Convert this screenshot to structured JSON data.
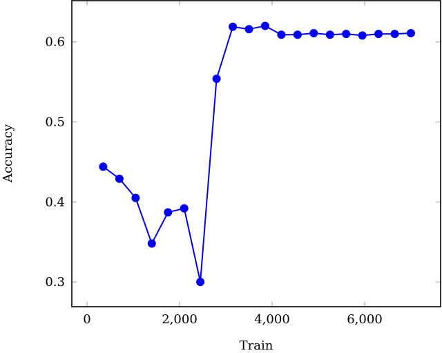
{
  "chart_data": {
    "type": "line",
    "title": "",
    "xlabel": "Train",
    "ylabel": "Accuracy",
    "xlim": [
      -300,
      7700
    ],
    "ylim": [
      0.272,
      0.652
    ],
    "xticks": [
      0,
      2000,
      4000,
      6000
    ],
    "xtick_labels": [
      "0",
      "2,000",
      "4,000",
      "6,000"
    ],
    "yticks": [
      0.3,
      0.4,
      0.5,
      0.6
    ],
    "ytick_labels": [
      "0.3",
      "0.4",
      "0.5",
      "0.6"
    ],
    "grid": false,
    "legend": null,
    "series": [
      {
        "name": "Accuracy",
        "color": "#0000ee",
        "marker": "circle",
        "x": [
          350,
          700,
          1050,
          1400,
          1750,
          2100,
          2450,
          2800,
          3150,
          3500,
          3850,
          4200,
          4550,
          4900,
          5250,
          5600,
          5950,
          6300,
          6650,
          7000
        ],
        "values": [
          0.444,
          0.429,
          0.405,
          0.348,
          0.387,
          0.392,
          0.3,
          0.554,
          0.619,
          0.616,
          0.62,
          0.609,
          0.609,
          0.611,
          0.609,
          0.61,
          0.608,
          0.61,
          0.61,
          0.611
        ]
      }
    ]
  },
  "colors": {
    "series": "#0000ee",
    "axis": "#000000",
    "tick": "#9a9a9a"
  }
}
